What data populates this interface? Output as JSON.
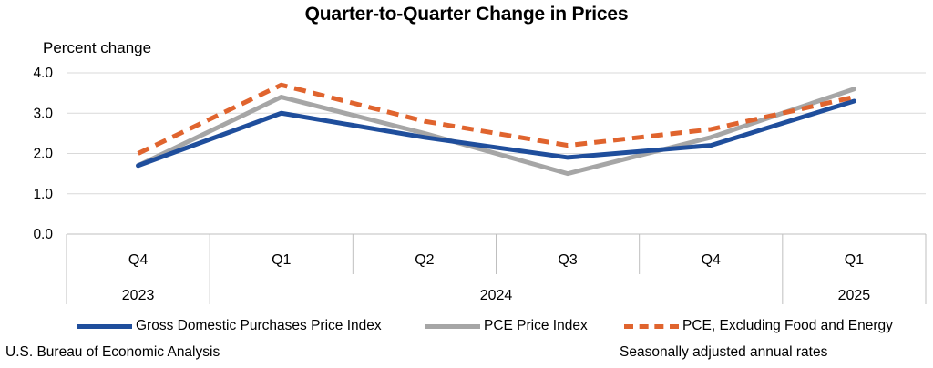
{
  "chart_data": {
    "type": "line",
    "title": "Quarter-to-Quarter Change in Prices",
    "ylabel": "Percent change",
    "xlabel": "",
    "ylim": [
      0,
      4
    ],
    "yticks": [
      "0.0",
      "1.0",
      "2.0",
      "3.0",
      "4.0"
    ],
    "categories": [
      "Q4",
      "Q1",
      "Q2",
      "Q3",
      "Q4",
      "Q1"
    ],
    "year_groups": [
      {
        "label": "2023",
        "span": 1
      },
      {
        "label": "2024",
        "span": 4
      },
      {
        "label": "2025",
        "span": 1
      }
    ],
    "grid": true,
    "legend_position": "bottom",
    "series": [
      {
        "name": "Gross Domestic Purchases Price Index",
        "values": [
          1.7,
          3.0,
          2.4,
          1.9,
          2.2,
          3.3
        ],
        "color": "#1f4e9c",
        "style": "solid"
      },
      {
        "name": "PCE Price Index",
        "values": [
          1.7,
          3.4,
          2.5,
          1.5,
          2.4,
          3.6
        ],
        "color": "#a6a6a6",
        "style": "solid"
      },
      {
        "name": "PCE, Excluding Food and Energy",
        "values": [
          2.0,
          3.7,
          2.8,
          2.2,
          2.6,
          3.4
        ],
        "color": "#e0642e",
        "style": "dashed"
      }
    ]
  },
  "footer": {
    "source": "U.S. Bureau of Economic Analysis",
    "note": "Seasonally adjusted annual rates"
  }
}
